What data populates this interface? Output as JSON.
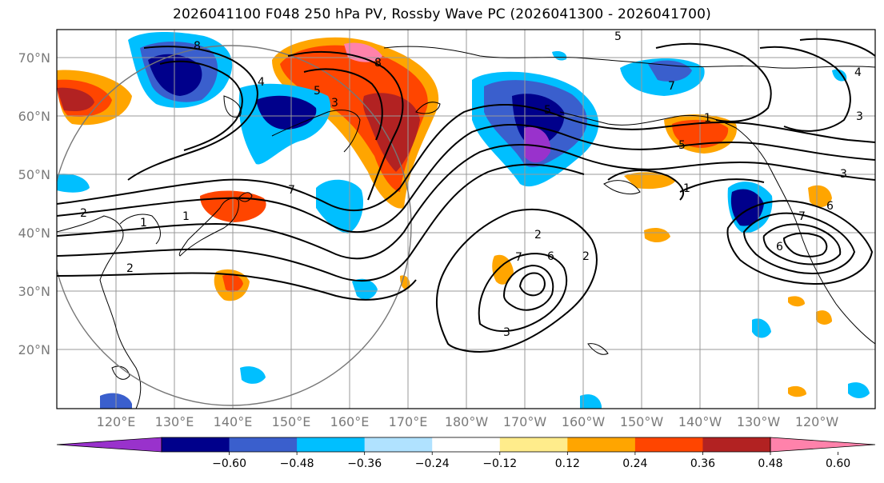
{
  "title": "2026041100 F048 250 hPa PV, Rossby Wave PC (2026041300 - 2026041700)",
  "lat_labels": [
    "70°N",
    "60°N",
    "50°N",
    "40°N",
    "30°N",
    "20°N"
  ],
  "lon_labels": [
    "120°E",
    "130°E",
    "140°E",
    "150°E",
    "160°E",
    "170°E",
    "180°W",
    "170°W",
    "160°W",
    "150°W",
    "140°W",
    "130°W",
    "120°W"
  ],
  "colorbar": {
    "colors": [
      "#9932cc",
      "#00008b",
      "#3a5fcd",
      "#00bfff",
      "#b0e2ff",
      "#ffffff",
      "#ffec8b",
      "#ffa500",
      "#ff4500",
      "#b22222",
      "#ff82ab"
    ],
    "tick_labels": [
      "−0.60",
      "−0.48",
      "−0.36",
      "−0.24",
      "−0.12",
      "0.12",
      "0.24",
      "0.36",
      "0.48",
      "0.60"
    ]
  },
  "contour_labels": [
    "8",
    "5",
    "4",
    "3",
    "5",
    "8",
    "7",
    "5",
    "2",
    "1",
    "2",
    "7",
    "1",
    "2",
    "6",
    "2",
    "3",
    "5",
    "1",
    "3",
    "7",
    "6",
    "4",
    "7",
    "3",
    "6",
    "1"
  ]
}
